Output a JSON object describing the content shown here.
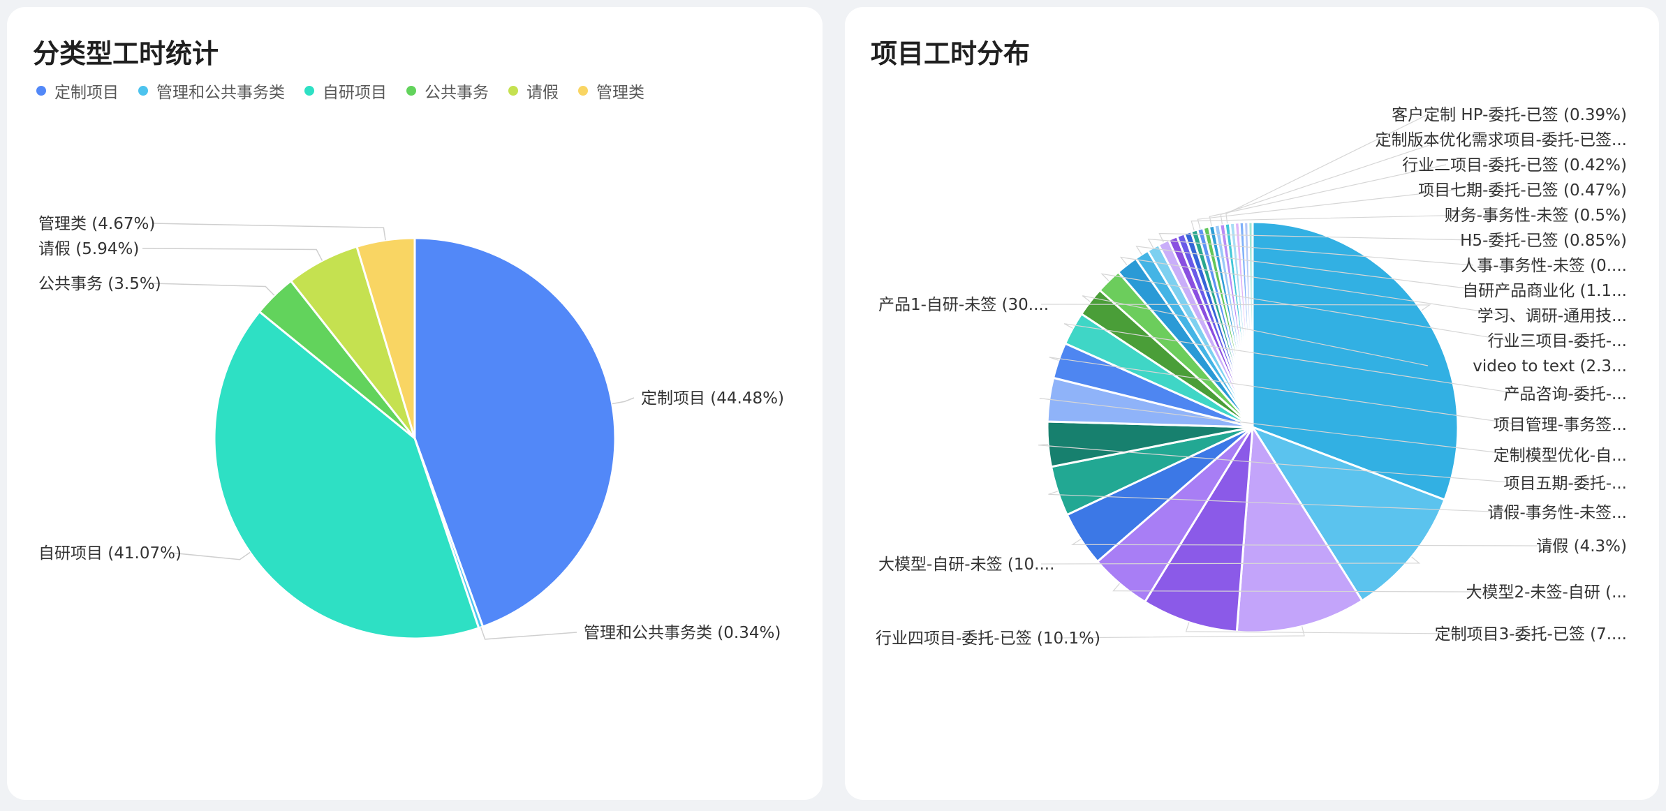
{
  "left_card": {
    "title": "分类型工时统计"
  },
  "right_card": {
    "title": "项目工时分布"
  },
  "chart_data": [
    {
      "type": "pie",
      "title": "分类型工时统计",
      "legend_position": "top-left",
      "slices": [
        {
          "name": "定制项目",
          "value": 44.48,
          "color": "#5288f8",
          "label": "定制项目 (44.48%)"
        },
        {
          "name": "管理和公共事务类",
          "value": 0.34,
          "color": "#4dc3ee",
          "label": "管理和公共事务类 (0.34%)"
        },
        {
          "name": "自研项目",
          "value": 41.07,
          "color": "#2ee0c4",
          "label": "自研项目 (41.07%)"
        },
        {
          "name": "公共事务",
          "value": 3.5,
          "color": "#62d35c",
          "label": "公共事务 (3.5%)"
        },
        {
          "name": "请假",
          "value": 5.94,
          "color": "#c5e150",
          "label": "请假 (5.94%)"
        },
        {
          "name": "管理类",
          "value": 4.67,
          "color": "#f9d563",
          "label": "管理类 (4.67%)"
        }
      ]
    },
    {
      "type": "pie",
      "title": "项目工时分布",
      "slices": [
        {
          "value": 30.5,
          "color": "#32b0e3",
          "label": "产品1-自研-未签 (30...."
        },
        {
          "value": 10.2,
          "color": "#5bc3ee",
          "label": "大模型-自研-未签 (10...."
        },
        {
          "value": 10.1,
          "color": "#c3a4fa",
          "label": "行业四项目-委托-已签 (10.1%)"
        },
        {
          "value": 7.5,
          "color": "#8b5ae8",
          "label": "定制项目3-委托-已签 (7...."
        },
        {
          "value": 4.8,
          "color": "#a87ef5",
          "label": "大模型2-未签-自研 (..."
        },
        {
          "value": 4.3,
          "color": "#3c78e6",
          "label": "请假 (4.3%)"
        },
        {
          "value": 3.9,
          "color": "#22a893",
          "label": "请假-事务性-未签..."
        },
        {
          "value": 3.5,
          "color": "#17806e",
          "label": "项目五期-委托-..."
        },
        {
          "value": 3.4,
          "color": "#8fb3f9",
          "label": "定制模型优化-自..."
        },
        {
          "value": 2.8,
          "color": "#4e86f1",
          "label": "项目管理-事务签..."
        },
        {
          "value": 2.6,
          "color": "#3fd6c6",
          "label": "产品咨询-委托-..."
        },
        {
          "value": 2.3,
          "color": "#4a9e38",
          "label": "video to text (2.3..."
        },
        {
          "value": 2.0,
          "color": "#6ccd5c",
          "label": "行业三项目-委托-..."
        },
        {
          "value": 1.7,
          "color": "#2a9ad6",
          "label": "学习、调研-通用技..."
        },
        {
          "value": 1.1,
          "color": "#44b4e5",
          "label": "自研产品商业化 (1.1..."
        },
        {
          "value": 0.95,
          "color": "#7dd0f0",
          "label": "人事-事务性-未签 (0...."
        },
        {
          "value": 0.85,
          "color": "#c9aef9",
          "label": "H5-委托-已签 (0.85%)"
        },
        {
          "value": 0.7,
          "color": "#8a4fe0",
          "label": ""
        },
        {
          "value": 0.6,
          "color": "#6a5ae8",
          "label": ""
        },
        {
          "value": 0.55,
          "color": "#3565d8",
          "label": ""
        },
        {
          "value": 0.5,
          "color": "#2aa78f",
          "label": "财务-事务性-未签 (0.5%)"
        },
        {
          "value": 0.47,
          "color": "#5d93f3",
          "label": "项目七期-委托-已签 (0.47%)"
        },
        {
          "value": 0.45,
          "color": "#62c65a",
          "label": ""
        },
        {
          "value": 0.42,
          "color": "#2f9ed6",
          "label": "行业二项目-委托-已签 (0.42%)"
        },
        {
          "value": 0.42,
          "color": "#9ac8f8",
          "label": ""
        },
        {
          "value": 0.4,
          "color": "#b78cf5",
          "label": "定制版本优化需求项目-委托-已签..."
        },
        {
          "value": 0.39,
          "color": "#42c7d8",
          "label": "客户定制 HP-委托-已签 (0.39%)"
        },
        {
          "value": 0.38,
          "color": "#a7dcf5",
          "label": ""
        },
        {
          "value": 0.36,
          "color": "#e0b5f8",
          "label": ""
        },
        {
          "value": 0.35,
          "color": "#7fb0f9",
          "label": ""
        },
        {
          "value": 0.34,
          "color": "#b3c7f9",
          "label": ""
        },
        {
          "value": 0.33,
          "color": "#9fe3d6",
          "label": ""
        }
      ]
    }
  ]
}
